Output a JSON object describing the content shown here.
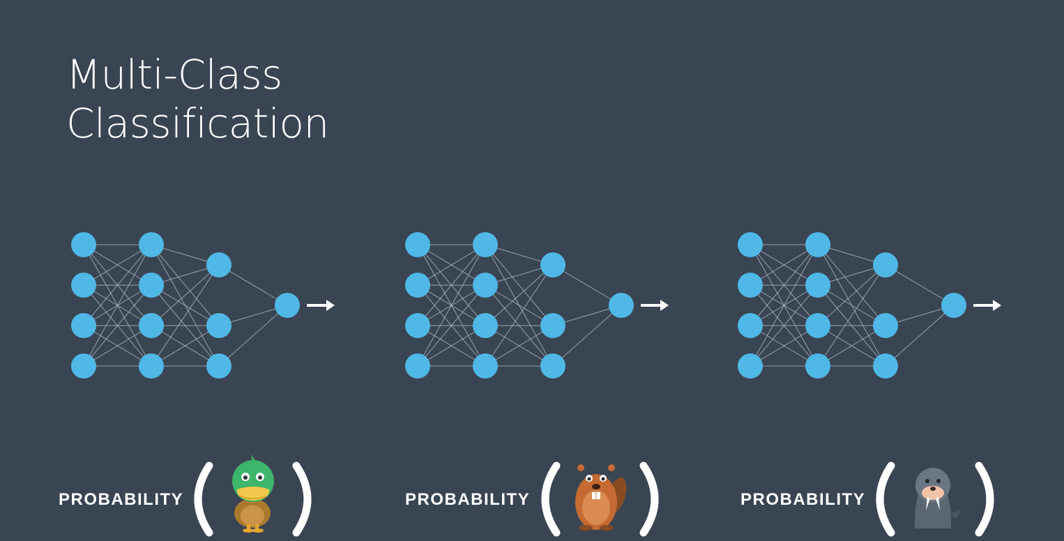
{
  "slide": {
    "title_line1": "Multi-Class",
    "title_line2": "Classification"
  },
  "colors": {
    "background": "#3a4553",
    "node": "#4fb8e6",
    "edge": "#b9c2cc",
    "text": "#ffffff"
  },
  "network": {
    "layers": [
      4,
      4,
      3,
      1
    ]
  },
  "classes": [
    {
      "label": "PROBABILITY",
      "icon": "duck-icon"
    },
    {
      "label": "PROBABILITY",
      "icon": "beaver-icon"
    },
    {
      "label": "PROBABILITY",
      "icon": "walrus-icon"
    }
  ]
}
